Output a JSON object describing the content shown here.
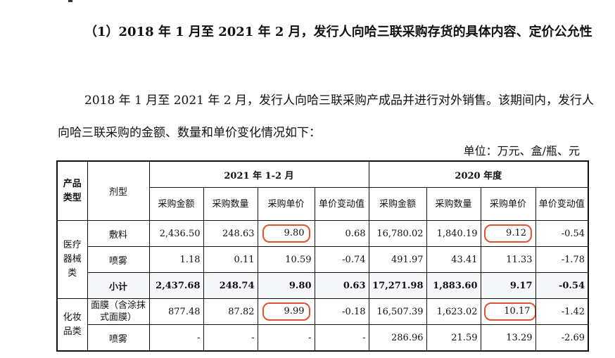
{
  "heading": "（1）2018 年 1 月至 2021 年 2 月，发行人向哈三联采购存货的具体内容、定价公允性",
  "paragraph": "2018 年 1 月至 2021 年 2 月，发行人向哈三联采购产成品并进行对外销售。该期间内，发行人向哈三联采购的金额、数量和单价变化情况如下：",
  "unit": "单位：万元、盒/瓶、元",
  "table": {
    "col_category": "产品类型",
    "col_form": "剂型",
    "period1": "2021 年 1-2 月",
    "period2": "2020 年度",
    "sub_headers": [
      "采购金额",
      "采购数量",
      "采购单价",
      "单价变动值"
    ],
    "groups": [
      {
        "category": "医疗器械类",
        "rows": [
          {
            "form": "敷料",
            "p1": [
              "2,436.50",
              "248.63",
              "9.80",
              "0.68"
            ],
            "p2": [
              "16,780.02",
              "1,840.19",
              "9.12",
              "-0.54"
            ]
          },
          {
            "form": "喷雾",
            "p1": [
              "1.18",
              "0.11",
              "10.59",
              "-0.74"
            ],
            "p2": [
              "491.97",
              "43.41",
              "11.33",
              "-1.78"
            ]
          },
          {
            "form": "小计",
            "p1": [
              "2,437.68",
              "248.74",
              "9.80",
              "0.63"
            ],
            "p2": [
              "17,271.98",
              "1,883.60",
              "9.17",
              "-0.54"
            ]
          }
        ]
      },
      {
        "category": "化妆品类",
        "rows": [
          {
            "form": "面膜（含涂抹式面膜）",
            "p1": [
              "877.48",
              "87.82",
              "9.99",
              "-0.18"
            ],
            "p2": [
              "16,507.39",
              "1,623.02",
              "10.17",
              "-1.42"
            ]
          },
          {
            "form": "喷雾",
            "p1": [
              "-",
              "-",
              "-",
              "-"
            ],
            "p2": [
              "286.96",
              "21.59",
              "13.29",
              "-2.69"
            ]
          }
        ]
      }
    ]
  }
}
